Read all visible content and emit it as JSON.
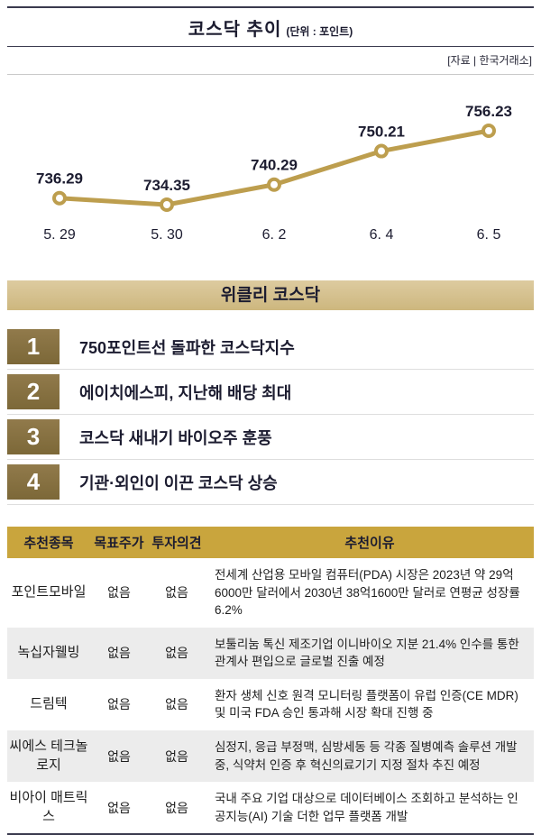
{
  "chart": {
    "title": "코스닥 추이",
    "unit_label": "(단위 : 포인트)",
    "source": "[자료 | 한국거래소]"
  },
  "chart_data": {
    "type": "line",
    "title": "코스닥 추이",
    "xlabel": "",
    "ylabel": "포인트",
    "x": [
      "5. 29",
      "5. 30",
      "6. 2",
      "6. 4",
      "6. 5"
    ],
    "values": [
      736.29,
      734.35,
      740.29,
      750.21,
      756.23
    ],
    "ylim": [
      730,
      760
    ],
    "grid": false,
    "value_labels_shown": true,
    "line_color": "#bd9e4e",
    "marker": "open-circle"
  },
  "weekly": {
    "title": "위클리 코스닥",
    "items": [
      {
        "rank": "1",
        "label": "750포인트선 돌파한 코스닥지수"
      },
      {
        "rank": "2",
        "label": "에이치에스피, 지난해 배당 최대"
      },
      {
        "rank": "3",
        "label": "코스닥 새내기 바이오주 훈풍"
      },
      {
        "rank": "4",
        "label": "기관·외인이 이끈 코스닥 상승"
      }
    ]
  },
  "table": {
    "headers": [
      "추천종목",
      "목표주가",
      "투자의견",
      "추천이유"
    ],
    "rows": [
      {
        "name": "포인트모바일",
        "target": "없음",
        "opinion": "없음",
        "reason": "전세계 산업용 모바일 컴퓨터(PDA) 시장은 2023년 약 29억6000만 달러에서 2030년 38억1600만 달러로 연평균 성장률 6.2%"
      },
      {
        "name": "녹십자웰빙",
        "target": "없음",
        "opinion": "없음",
        "reason": "보툴리눔 톡신 제조기업 이니바이오 지분 21.4% 인수를 통한 관계사 편입으로 글로벌 진출 예정"
      },
      {
        "name": "드림텍",
        "target": "없음",
        "opinion": "없음",
        "reason": "환자 생체 신호 원격 모니터링 플랫폼이 유럽 인증(CE MDR) 및 미국 FDA 승인 통과해 시장 확대 진행 중"
      },
      {
        "name": "씨에스 테크놀로지",
        "target": "없음",
        "opinion": "없음",
        "reason": "심정지, 응급 부정맥, 심방세동 등 각종 질병예측 솔루션 개발 중, 식약처 인증 후 혁신의료기기 지정 절차 추진 예정"
      },
      {
        "name": "비아이 매트릭스",
        "target": "없음",
        "opinion": "없음",
        "reason": "국내 주요 기업 대상으로 데이터베이스 조회하고 분석하는 인공지능(AI) 기술 더한 업무 플랫폼 개발"
      }
    ]
  },
  "colors": {
    "rule_dark": "#3a3a4e",
    "accent_gold": "#bd9e4e",
    "rank_box": "#857040",
    "table_header": "#c9a53d",
    "row_alt": "#ececec"
  }
}
